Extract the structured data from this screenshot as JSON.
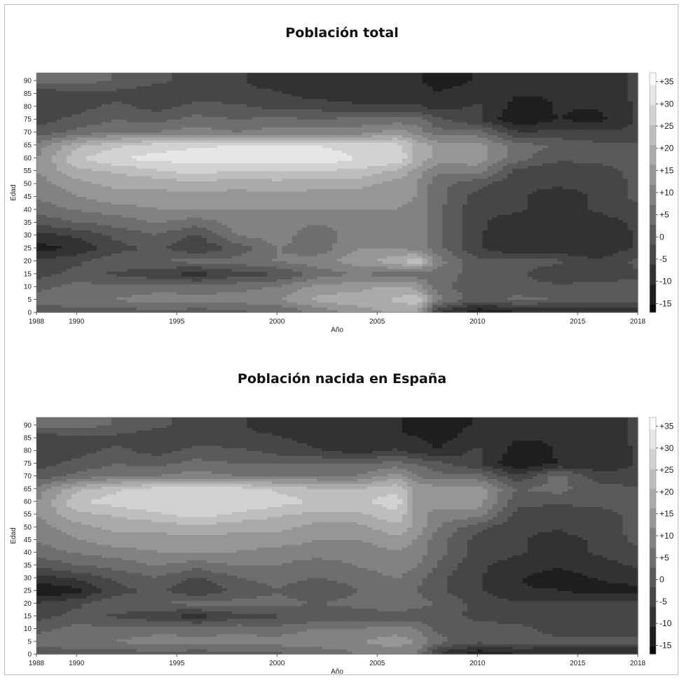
{
  "chart_data": [
    {
      "type": "heatmap",
      "title": "Población total",
      "xlabel": "Año",
      "ylabel": "Edad",
      "xlim": [
        1988,
        2018
      ],
      "ylim": [
        0,
        93
      ],
      "xticks": [
        "1988",
        "1990",
        "1995",
        "2000",
        "2005",
        "2010",
        "2015",
        "2018"
      ],
      "yticks": [
        "0",
        "5",
        "10",
        "15",
        "20",
        "25",
        "30",
        "35",
        "40",
        "45",
        "50",
        "55",
        "60",
        "65",
        "70",
        "75",
        "80",
        "85",
        "90"
      ],
      "colorbar": {
        "range": [
          -17,
          37
        ],
        "ticks": [
          "+35",
          "+30",
          "+25",
          "+20",
          "+15",
          "+10",
          "+5",
          "0",
          "-5",
          "-10",
          "-15"
        ],
        "colors": [
          "#000000",
          "#ffffff"
        ]
      },
      "years": [
        1988,
        1990,
        1992,
        1994,
        1996,
        1998,
        2000,
        2002,
        2004,
        2006,
        2007,
        2008,
        2010,
        2012,
        2014,
        2016,
        2018
      ],
      "ages": [
        1,
        5,
        10,
        15,
        20,
        25,
        30,
        35,
        40,
        45,
        50,
        55,
        60,
        65,
        70,
        75,
        80,
        85,
        90
      ],
      "values": [
        [
          0,
          2,
          2,
          3,
          2,
          3,
          4,
          10,
          15,
          18,
          18,
          -5,
          -12,
          -10,
          -10,
          -10,
          -10
        ],
        [
          5,
          8,
          8,
          10,
          10,
          10,
          12,
          18,
          20,
          22,
          25,
          10,
          0,
          5,
          3,
          3,
          3
        ],
        [
          2,
          5,
          5,
          6,
          5,
          6,
          8,
          14,
          15,
          18,
          15,
          5,
          0,
          0,
          0,
          0,
          0
        ],
        [
          -3,
          0,
          -2,
          -5,
          -8,
          -3,
          -2,
          5,
          8,
          5,
          5,
          5,
          2,
          0,
          -5,
          -3,
          -2
        ],
        [
          -5,
          -2,
          2,
          3,
          5,
          5,
          8,
          10,
          15,
          20,
          25,
          10,
          0,
          0,
          0,
          -5,
          0
        ],
        [
          -12,
          -10,
          -3,
          0,
          -5,
          0,
          8,
          5,
          12,
          12,
          10,
          5,
          -5,
          -10,
          -10,
          -10,
          -5
        ],
        [
          -8,
          -5,
          0,
          3,
          -2,
          8,
          10,
          5,
          10,
          12,
          10,
          5,
          -5,
          -10,
          -10,
          -10,
          -5
        ],
        [
          0,
          3,
          5,
          8,
          5,
          10,
          10,
          8,
          10,
          12,
          10,
          5,
          -5,
          -8,
          -8,
          -8,
          -5
        ],
        [
          5,
          8,
          10,
          12,
          12,
          12,
          12,
          12,
          12,
          12,
          10,
          5,
          -5,
          -5,
          -8,
          -5,
          -3
        ],
        [
          8,
          12,
          15,
          15,
          15,
          15,
          15,
          15,
          15,
          15,
          12,
          5,
          -3,
          -5,
          -8,
          -5,
          0
        ],
        [
          10,
          15,
          18,
          18,
          20,
          18,
          20,
          18,
          18,
          15,
          12,
          5,
          0,
          -5,
          -5,
          -5,
          0
        ],
        [
          12,
          20,
          22,
          25,
          28,
          25,
          25,
          25,
          25,
          20,
          15,
          8,
          10,
          -3,
          -5,
          -3,
          0
        ],
        [
          12,
          25,
          30,
          32,
          32,
          33,
          33,
          35,
          30,
          30,
          20,
          15,
          15,
          5,
          0,
          0,
          0
        ],
        [
          10,
          20,
          25,
          28,
          30,
          30,
          30,
          30,
          28,
          28,
          20,
          15,
          15,
          5,
          3,
          0,
          0
        ],
        [
          0,
          5,
          8,
          8,
          10,
          8,
          10,
          10,
          10,
          15,
          10,
          5,
          5,
          -5,
          -5,
          -5,
          -5
        ],
        [
          -3,
          0,
          3,
          2,
          5,
          3,
          5,
          3,
          5,
          5,
          5,
          0,
          -5,
          -15,
          -10,
          -12,
          -5
        ],
        [
          -5,
          -3,
          0,
          -3,
          0,
          0,
          -3,
          -3,
          -5,
          -5,
          -5,
          -8,
          -5,
          -12,
          -10,
          -10,
          -5
        ],
        [
          -5,
          -3,
          -3,
          -5,
          -3,
          -5,
          -5,
          -8,
          -8,
          -8,
          -8,
          -10,
          -8,
          -10,
          -10,
          -8,
          -5
        ],
        [
          5,
          5,
          3,
          0,
          -3,
          -5,
          -8,
          -10,
          -8,
          -10,
          -10,
          -12,
          -10,
          -10,
          -10,
          -8,
          -5
        ]
      ]
    },
    {
      "type": "heatmap",
      "title": "Población nacida en España",
      "xlabel": "Año",
      "ylabel": "Edad",
      "xlim": [
        1988,
        2018
      ],
      "ylim": [
        0,
        93
      ],
      "xticks": [
        "1988",
        "1990",
        "1995",
        "2000",
        "2005",
        "2010",
        "2015",
        "2018"
      ],
      "yticks": [
        "0",
        "5",
        "10",
        "15",
        "20",
        "25",
        "30",
        "35",
        "40",
        "45",
        "50",
        "55",
        "60",
        "65",
        "70",
        "75",
        "80",
        "85",
        "90"
      ],
      "colorbar": {
        "range": [
          -17,
          37
        ],
        "ticks": [
          "+35",
          "+30",
          "+25",
          "+20",
          "+15",
          "+10",
          "+5",
          "0",
          "-5",
          "-10",
          "-15"
        ],
        "colors": [
          "#000000",
          "#ffffff"
        ]
      },
      "years": [
        1988,
        1990,
        1992,
        1994,
        1996,
        1998,
        2000,
        2002,
        2004,
        2006,
        2007,
        2008,
        2010,
        2012,
        2014,
        2016,
        2018
      ],
      "ages": [
        1,
        5,
        10,
        15,
        20,
        25,
        30,
        35,
        40,
        45,
        50,
        55,
        60,
        65,
        70,
        75,
        80,
        85,
        90
      ],
      "values": [
        [
          0,
          2,
          2,
          3,
          2,
          3,
          3,
          5,
          8,
          10,
          8,
          -5,
          -12,
          -10,
          -10,
          -10,
          -10
        ],
        [
          5,
          8,
          8,
          10,
          10,
          10,
          10,
          12,
          12,
          15,
          12,
          5,
          0,
          2,
          0,
          0,
          0
        ],
        [
          2,
          5,
          5,
          6,
          5,
          6,
          5,
          8,
          8,
          10,
          8,
          2,
          0,
          0,
          -3,
          -3,
          -3
        ],
        [
          -3,
          0,
          -2,
          -5,
          -8,
          -3,
          -2,
          0,
          0,
          0,
          0,
          0,
          -2,
          -3,
          -5,
          -5,
          -5
        ],
        [
          -5,
          -2,
          2,
          3,
          5,
          5,
          5,
          3,
          5,
          8,
          5,
          3,
          -3,
          -5,
          -5,
          -5,
          -3
        ],
        [
          -15,
          -12,
          -3,
          0,
          -5,
          0,
          3,
          0,
          3,
          5,
          3,
          0,
          -5,
          -10,
          -10,
          -12,
          -12
        ],
        [
          -8,
          -5,
          0,
          3,
          -2,
          3,
          5,
          3,
          5,
          8,
          5,
          0,
          -5,
          -10,
          -12,
          -10,
          -8
        ],
        [
          0,
          3,
          5,
          8,
          5,
          8,
          8,
          5,
          8,
          10,
          8,
          3,
          -5,
          -8,
          -10,
          -8,
          -5
        ],
        [
          5,
          8,
          10,
          12,
          12,
          12,
          10,
          10,
          10,
          12,
          10,
          5,
          -3,
          -5,
          -8,
          -5,
          -3
        ],
        [
          8,
          12,
          15,
          15,
          15,
          15,
          15,
          12,
          12,
          15,
          12,
          5,
          -3,
          -5,
          -8,
          -5,
          0
        ],
        [
          10,
          15,
          18,
          18,
          20,
          18,
          18,
          15,
          15,
          20,
          15,
          8,
          0,
          -5,
          -5,
          -3,
          0
        ],
        [
          12,
          20,
          22,
          25,
          28,
          25,
          22,
          20,
          20,
          25,
          15,
          10,
          10,
          -3,
          -5,
          -3,
          0
        ],
        [
          12,
          25,
          28,
          30,
          30,
          30,
          28,
          25,
          25,
          28,
          15,
          15,
          15,
          0,
          0,
          0,
          0
        ],
        [
          10,
          20,
          25,
          28,
          28,
          28,
          25,
          22,
          22,
          25,
          15,
          15,
          15,
          3,
          5,
          0,
          0
        ],
        [
          0,
          5,
          8,
          8,
          10,
          8,
          8,
          8,
          8,
          15,
          8,
          5,
          5,
          -5,
          5,
          -3,
          -5
        ],
        [
          -3,
          0,
          3,
          2,
          5,
          3,
          3,
          3,
          3,
          5,
          3,
          0,
          -5,
          -15,
          -10,
          -10,
          -5
        ],
        [
          -5,
          -3,
          0,
          -3,
          0,
          0,
          -3,
          -5,
          -8,
          -5,
          -8,
          -10,
          -5,
          -12,
          -10,
          -10,
          -5
        ],
        [
          -5,
          -3,
          -3,
          -5,
          -3,
          -5,
          -5,
          -8,
          -8,
          -10,
          -10,
          -12,
          -8,
          -10,
          -10,
          -8,
          -5
        ],
        [
          5,
          5,
          3,
          0,
          -3,
          -5,
          -8,
          -10,
          -10,
          -10,
          -12,
          -12,
          -10,
          -10,
          -10,
          -8,
          -5
        ]
      ]
    }
  ]
}
